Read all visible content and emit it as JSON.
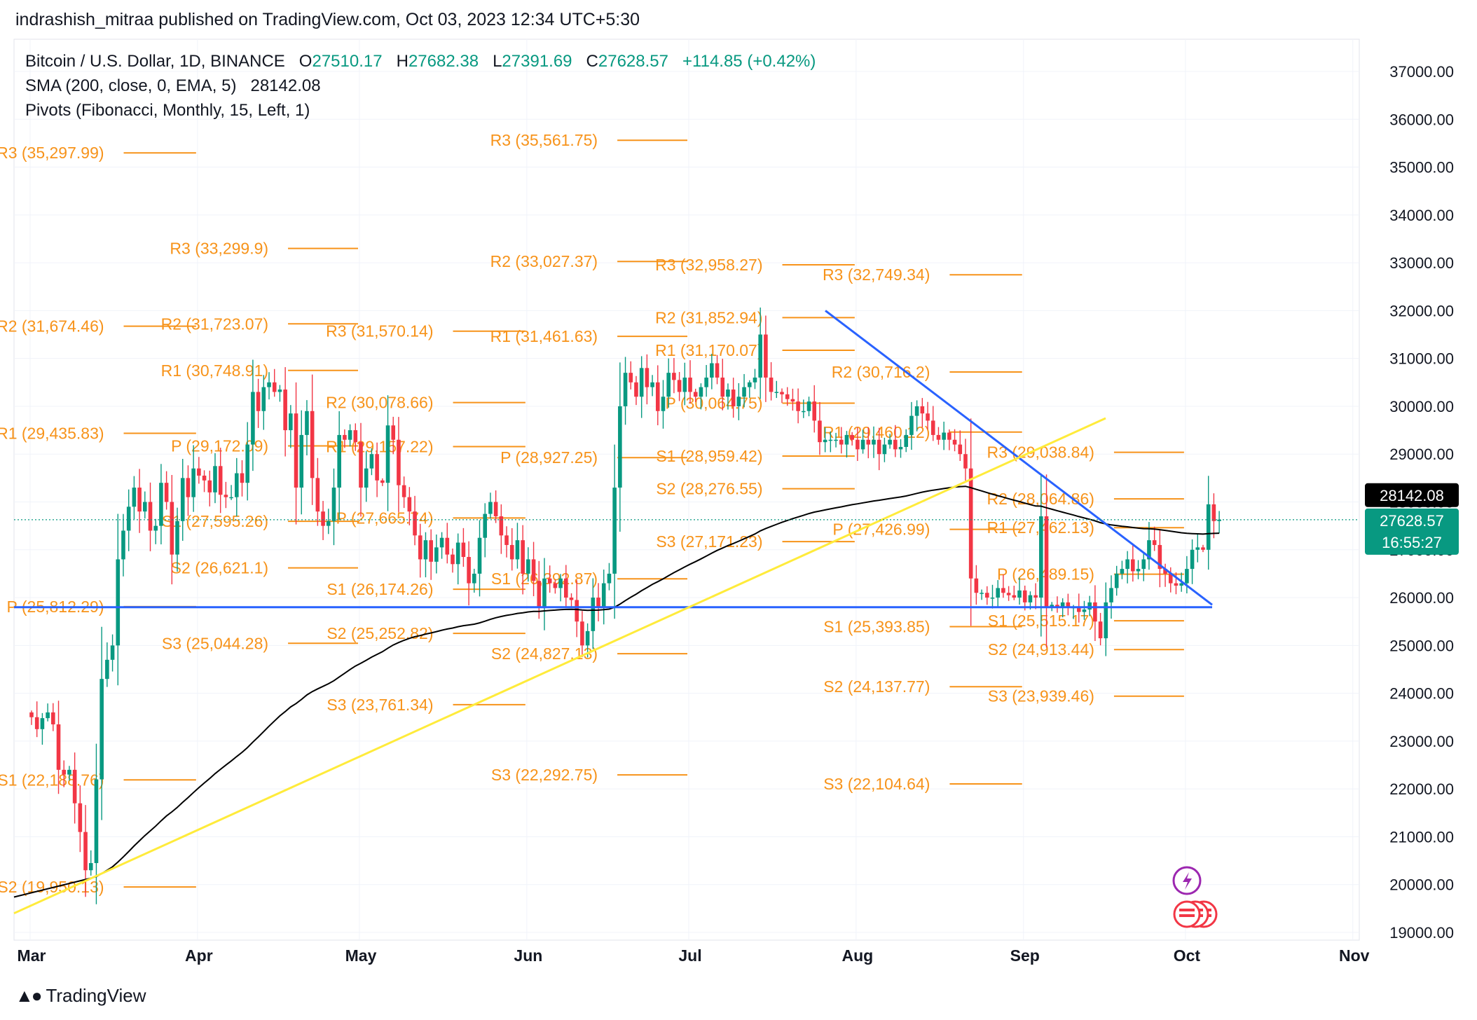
{
  "publisher": "indrashish_mitraa published on TradingView.com, Oct 03, 2023 12:34 UTC+5:30",
  "brand": "TradingView",
  "colors": {
    "up": "#089981",
    "down": "#f23645",
    "pivot": "#f7931a",
    "sma": "#000000",
    "trend_blue": "#2962ff",
    "trend_yellow": "#ffeb3b",
    "grid": "#f0f3fa"
  },
  "legend": {
    "symbol": "Bitcoin / U.S. Dollar, 1D, BINANCE",
    "o_label": "O",
    "o": "27510.17",
    "h_label": "H",
    "h": "27682.38",
    "l_label": "L",
    "l": "27391.69",
    "c_label": "C",
    "c": "27628.57",
    "change": "+114.85 (+0.42%)",
    "sma_label": "SMA (200, close, 0, EMA, 5)",
    "sma_value": "28142.08",
    "pivots_label": "Pivots (Fibonacci, Monthly, 15, Left, 1)"
  },
  "chart_data": {
    "type": "candlestick",
    "symbol": "BTCUSD",
    "ylim": [
      19000,
      37200
    ],
    "y_ticks": [
      "37000.00",
      "36000.00",
      "35000.00",
      "34000.00",
      "33000.00",
      "32000.00",
      "31000.00",
      "30000.00",
      "29000.00",
      "28000.00",
      "27000.00",
      "26000.00",
      "25000.00",
      "24000.00",
      "23000.00",
      "22000.00",
      "21000.00",
      "20000.00",
      "19000.00"
    ],
    "x_ticks": [
      "Mar",
      "Apr",
      "May",
      "Jun",
      "Jul",
      "Aug",
      "Sep",
      "Oct",
      "Nov"
    ],
    "price_label": "27628.57",
    "countdown": "16:55:27",
    "sma_label_value": "28142.08",
    "pivots": [
      {
        "period": 0,
        "levels": [
          {
            "label": "R3 (35,297.99)",
            "value": 35297.99
          },
          {
            "label": "R2 (31,674.46)",
            "value": 31674.46
          },
          {
            "label": "R1 (29,435.83)",
            "value": 29435.83
          },
          {
            "label": "P (25,812.29)",
            "value": 25812.29
          },
          {
            "label": "S1 (22,188.76)",
            "value": 22188.76
          },
          {
            "label": "S2 (19,950.13)",
            "value": 19950.13
          }
        ]
      },
      {
        "period": 1,
        "levels": [
          {
            "label": "R3 (33,299.9)",
            "value": 33299.9
          },
          {
            "label": "R2 (31,723.07)",
            "value": 31723.07
          },
          {
            "label": "R1 (30,748.91)",
            "value": 30748.91
          },
          {
            "label": "P (29,172.09)",
            "value": 29172.09
          },
          {
            "label": "S1 (27,595.26)",
            "value": 27595.26
          },
          {
            "label": "S2 (26,621.1)",
            "value": 26621.1
          },
          {
            "label": "S3 (25,044.28)",
            "value": 25044.28
          }
        ]
      },
      {
        "period": 2,
        "levels": [
          {
            "label": "R3 (31,570.14)",
            "value": 31570.14
          },
          {
            "label": "R2 (30,078.66)",
            "value": 30078.66
          },
          {
            "label": "R1 (29,157.22)",
            "value": 29157.22
          },
          {
            "label": "P (27,665.74)",
            "value": 27665.74
          },
          {
            "label": "S1 (26,174.26)",
            "value": 26174.26
          },
          {
            "label": "S2 (25,252.82)",
            "value": 25252.82
          },
          {
            "label": "S3 (23,761.34)",
            "value": 23761.34
          }
        ]
      },
      {
        "period": 3,
        "levels": [
          {
            "label": "R3 (35,561.75)",
            "value": 35561.75
          },
          {
            "label": "R2 (33,027.37)",
            "value": 33027.37
          },
          {
            "label": "R1 (31,461.63)",
            "value": 31461.63
          },
          {
            "label": "P (28,927.25)",
            "value": 28927.25
          },
          {
            "label": "S1 (26,392.87)",
            "value": 26392.87
          },
          {
            "label": "S2 (24,827.13)",
            "value": 24827.13
          },
          {
            "label": "S3 (22,292.75)",
            "value": 22292.75
          }
        ]
      },
      {
        "period": 4,
        "levels": [
          {
            "label": "R3 (32,958.27)",
            "value": 32958.27
          },
          {
            "label": "R2 (31,852.94)",
            "value": 31852.94
          },
          {
            "label": "R1 (31,170.07)",
            "value": 31170.07
          },
          {
            "label": "P (30,064.75)",
            "value": 30064.75
          },
          {
            "label": "S1 (28,959.42)",
            "value": 28959.42
          },
          {
            "label": "S2 (28,276.55)",
            "value": 28276.55
          },
          {
            "label": "S3 (27,171.23)",
            "value": 27171.23
          }
        ]
      },
      {
        "period": 5,
        "levels": [
          {
            "label": "R3 (32,749.34)",
            "value": 32749.34
          },
          {
            "label": "R2 (30,716.2)",
            "value": 30716.2
          },
          {
            "label": "R1 (29,460.12)",
            "value": 29460.12
          },
          {
            "label": "P (27,426.99)",
            "value": 27426.99
          },
          {
            "label": "S1 (25,393.85)",
            "value": 25393.85
          },
          {
            "label": "S2 (24,137.77)",
            "value": 24137.77
          },
          {
            "label": "S3 (22,104.64)",
            "value": 22104.64
          }
        ]
      },
      {
        "period": 6,
        "levels": [
          {
            "label": "R3 (29,038.84)",
            "value": 29038.84
          },
          {
            "label": "R2 (28,064.86)",
            "value": 28064.86
          },
          {
            "label": "R1 (27,462.13)",
            "value": 27462.13
          },
          {
            "label": "P (26,489.15)",
            "value": 26489.15
          },
          {
            "label": "S1 (25,515.17)",
            "value": 25515.17
          },
          {
            "label": "S2 (24,913.44)",
            "value": 24913.44
          },
          {
            "label": "S3 (23,939.46)",
            "value": 23939.46
          }
        ]
      }
    ],
    "closes": [
      23500,
      23250,
      23480,
      23600,
      23350,
      22400,
      22300,
      22400,
      21700,
      21100,
      20300,
      20450,
      22200,
      24300,
      24700,
      25000,
      26800,
      27400,
      27900,
      28300,
      27800,
      28000,
      27400,
      27500,
      28400,
      28000,
      26900,
      27600,
      28500,
      28100,
      28700,
      28550,
      28450,
      28200,
      28750,
      28150,
      28100,
      28100,
      28600,
      28400,
      29200,
      30300,
      29900,
      30400,
      30500,
      30300,
      30350,
      29500,
      29850,
      28300,
      29400,
      29900,
      28500,
      27800,
      27500,
      27600,
      28300,
      29400,
      29300,
      29500,
      29250,
      28300,
      28700,
      29000,
      28450,
      28400,
      29600,
      29300,
      28350,
      28100,
      27800,
      27300,
      26800,
      27200,
      26750,
      27050,
      27250,
      26900,
      26700,
      27150,
      26850,
      26300,
      26500,
      27250,
      27750,
      28000,
      27700,
      27300,
      27100,
      26800,
      27200,
      26500,
      26800,
      26350,
      25800,
      26400,
      26300,
      26200,
      26400,
      26000,
      25950,
      25500,
      25000,
      25300,
      26000,
      25800,
      26300,
      26500,
      28300,
      30000,
      30700,
      30500,
      30200,
      30800,
      30400,
      30500,
      29900,
      30200,
      30700,
      30550,
      30300,
      30600,
      30300,
      30200,
      30400,
      30600,
      30900,
      30600,
      30200,
      30350,
      30000,
      30200,
      30400,
      30500,
      30600,
      31500,
      30600,
      30300,
      30300,
      30250,
      30150,
      30100,
      29900,
      29900,
      30100,
      29700,
      29250,
      29300,
      29300,
      29300,
      29200,
      29400,
      29300,
      29100,
      29300,
      29200,
      29300,
      29000,
      29200,
      29300,
      29100,
      29150,
      29400,
      29800,
      30000,
      29850,
      29700,
      29400,
      29300,
      29450,
      29300,
      29200,
      29000,
      28700,
      26400,
      26100,
      26100,
      26000,
      26000,
      26200,
      26100,
      26050,
      26000,
      26150,
      25900,
      26050,
      26000,
      27700,
      25800,
      25850,
      25800,
      25900,
      25800,
      25800,
      25700,
      25750,
      25900,
      25500,
      25150,
      25900,
      26200,
      26500,
      26600,
      26800,
      26550,
      26600,
      26800,
      27200,
      27100,
      26600,
      26500,
      26300,
      26250,
      26300,
      26600,
      27000,
      27050,
      27000,
      27950,
      27600,
      27630
    ],
    "hlines": [
      {
        "label": "support",
        "value": 25800
      }
    ],
    "trendlines": [
      {
        "name": "resistance",
        "from": {
          "x": "Jul 25",
          "y": 32000
        },
        "to": {
          "x": "Oct 04",
          "y": 25850
        }
      },
      {
        "name": "uptrend",
        "from": {
          "x": "Feb 27",
          "y": 19400
        },
        "to": {
          "x": "Aug 26",
          "y": 29750
        }
      }
    ]
  }
}
